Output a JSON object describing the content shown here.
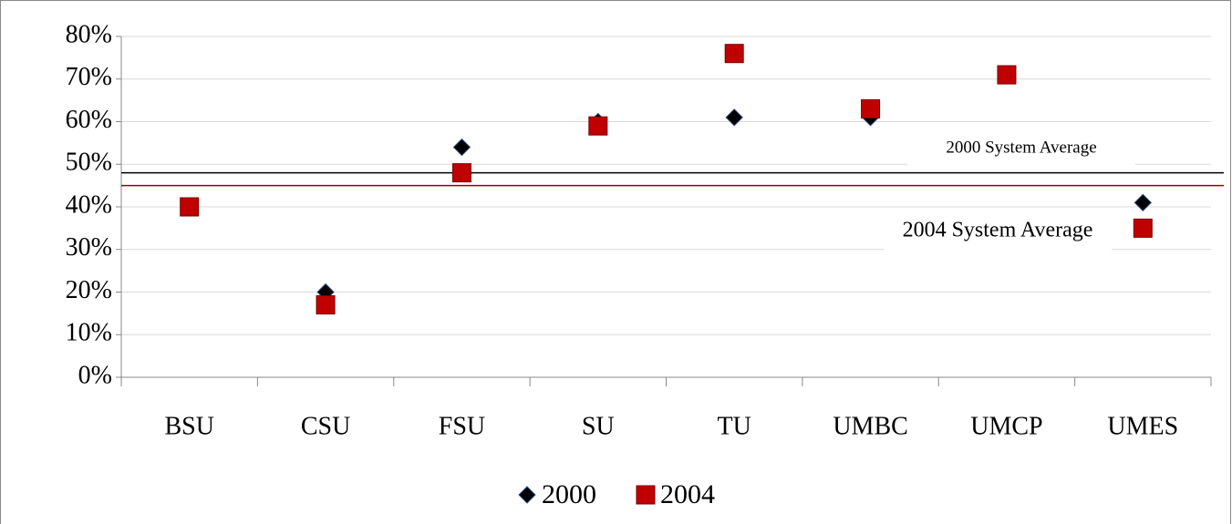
{
  "chart_data": {
    "type": "scatter",
    "categories": [
      "BSU",
      "CSU",
      "FSU",
      "SU",
      "TU",
      "UMBC",
      "UMCP",
      "UMES"
    ],
    "series": [
      {
        "name": "2000",
        "color": "#000000",
        "marker": "diamond",
        "values": [
          40,
          20,
          54,
          60,
          61,
          61,
          71,
          41
        ]
      },
      {
        "name": "2004",
        "color": "#c00000",
        "marker": "square",
        "values": [
          40,
          17,
          48,
          59,
          76,
          63,
          71,
          35
        ]
      }
    ],
    "reference_lines": [
      {
        "label": "2000 System Average",
        "value": 48,
        "color": "#000000"
      },
      {
        "label": "2004 System Average",
        "value": 45,
        "color": "#a00000"
      }
    ],
    "ylim": [
      0,
      80
    ],
    "yticks": [
      {
        "value": 0,
        "label": "0%"
      },
      {
        "value": 10,
        "label": "10%"
      },
      {
        "value": 20,
        "label": "20%"
      },
      {
        "value": 30,
        "label": "30%"
      },
      {
        "value": 40,
        "label": "40%"
      },
      {
        "value": 50,
        "label": "50%"
      },
      {
        "value": 60,
        "label": "60%"
      },
      {
        "value": 70,
        "label": "70%"
      },
      {
        "value": 80,
        "label": "80%"
      }
    ],
    "grid": true,
    "legend": "bottom"
  }
}
